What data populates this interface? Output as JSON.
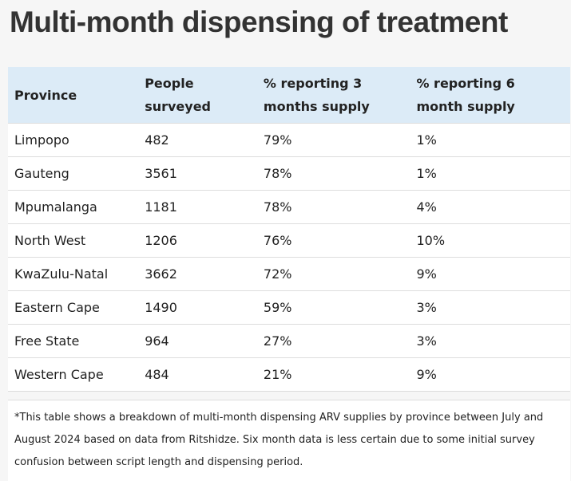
{
  "title": "Multi-month dispensing of treatment",
  "table": {
    "header": [
      "Province",
      "People surveyed",
      "% reporting 3 months supply",
      "% reporting 6 month supply"
    ],
    "rows": [
      [
        "Limpopo",
        "482",
        "79%",
        "1%"
      ],
      [
        "Gauteng",
        "3561",
        "78%",
        "1%"
      ],
      [
        "Mpumalanga",
        "1181",
        "78%",
        "4%"
      ],
      [
        "North West",
        "1206",
        "76%",
        "10%"
      ],
      [
        "KwaZulu-Natal",
        "3662",
        "72%",
        "9%"
      ],
      [
        "Eastern Cape",
        "1490",
        "59%",
        "3%"
      ],
      [
        "Free State",
        "964",
        "27%",
        "3%"
      ],
      [
        "Western Cape",
        "484",
        "21%",
        "9%"
      ]
    ]
  },
  "footnote": "*This table shows a breakdown of multi-month dispensing ARV supplies by province between July and August 2024 based on data from Ritshidze. Six month data is less certain due to some initial survey confusion between script length and dispensing period."
}
